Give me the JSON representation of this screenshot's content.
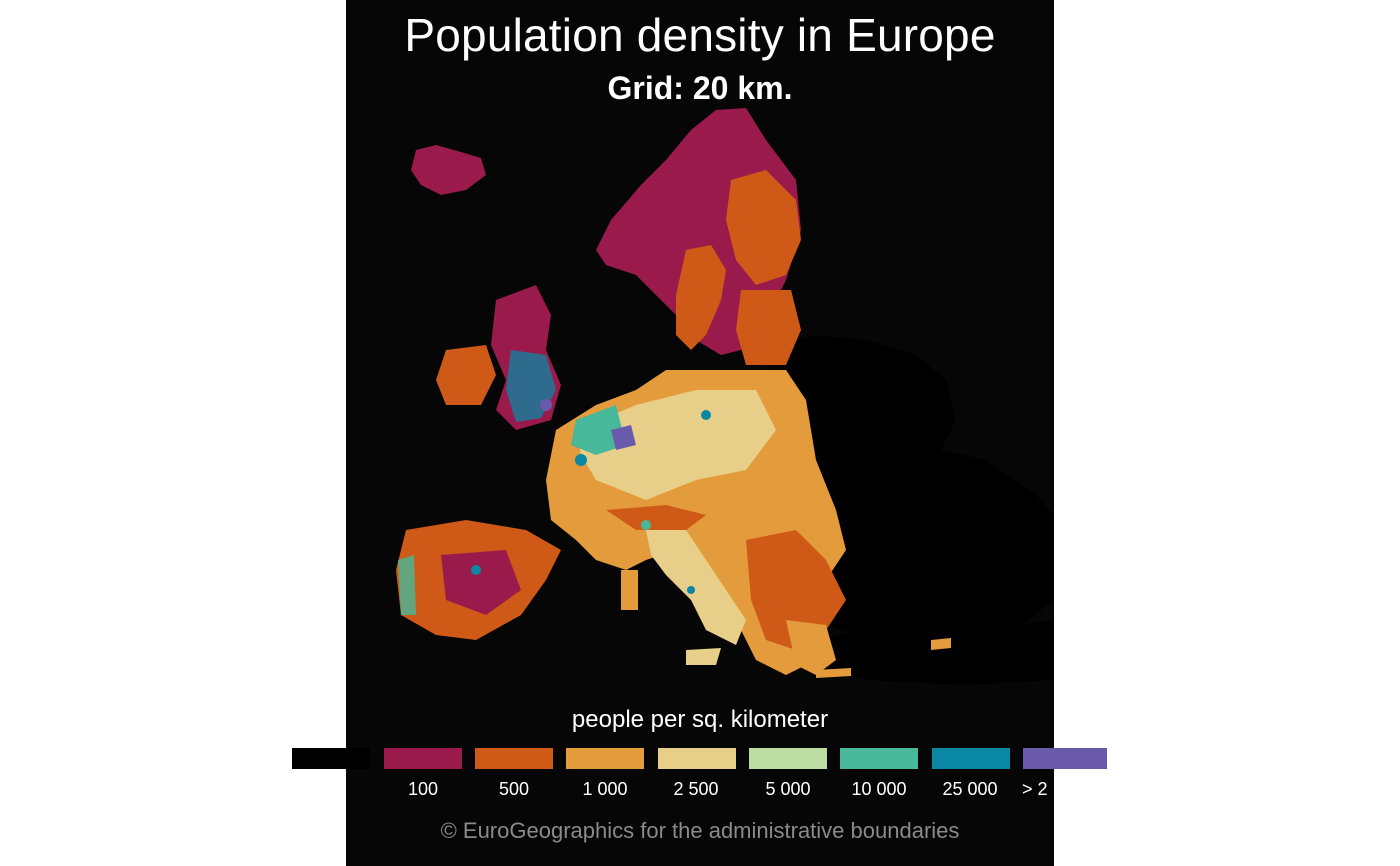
{
  "title": "Population density in Europe",
  "subtitle": "Grid: 20 km.",
  "legend": {
    "title": "people per sq. kilometer",
    "classes": [
      {
        "color": "#000000",
        "label": ""
      },
      {
        "color": "#9a1b4b",
        "label": "100"
      },
      {
        "color": "#cf5a17",
        "label": "500"
      },
      {
        "color": "#e39b3c",
        "label": "1 000"
      },
      {
        "color": "#e7cf8a",
        "label": "2 500"
      },
      {
        "color": "#bcdca2",
        "label": "5 000"
      },
      {
        "color": "#47b89a",
        "label": "10 000"
      },
      {
        "color": "#0a87a3",
        "label": "25 000"
      },
      {
        "color": "#6a5aab",
        "label": "> 2"
      }
    ]
  },
  "credit": "© EuroGeographics for the administrative boundaries",
  "map": {
    "background_color": "#060606",
    "non_data_land_color": "#000000"
  }
}
